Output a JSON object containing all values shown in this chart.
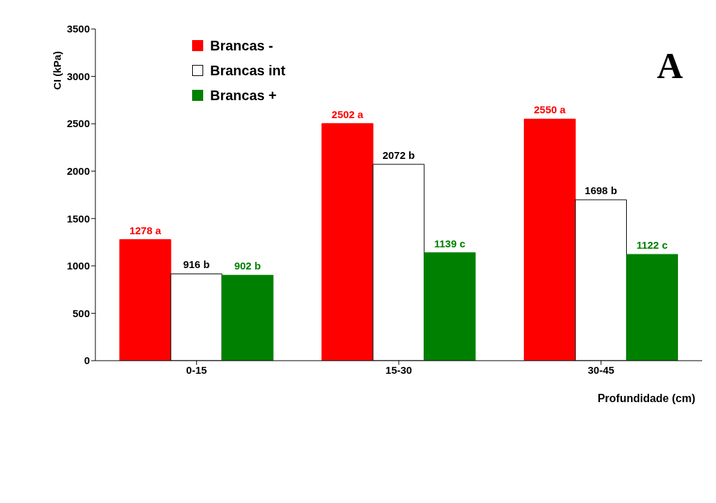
{
  "chart_data": {
    "type": "bar",
    "ylabel": "CI (kPa)",
    "xlabel": "Profundidade (cm)",
    "categories": [
      "0-15",
      "15-30",
      "30-45"
    ],
    "series": [
      {
        "name": "Brancas -",
        "color": "#ff0000",
        "values": [
          1278,
          2502,
          2550
        ],
        "value_labels": [
          "1278 a",
          "2502 a",
          "2550 a"
        ]
      },
      {
        "name": "Brancas int",
        "color": "#ffffff",
        "values": [
          916,
          2072,
          1698
        ],
        "value_labels": [
          "916 b",
          "2072 b",
          "1698 b"
        ]
      },
      {
        "name": "Brancas +",
        "color": "#008000",
        "values": [
          902,
          1139,
          1122
        ],
        "value_labels": [
          "902 b",
          "1139 c",
          "1122 c"
        ]
      }
    ],
    "ylim": [
      0,
      3500
    ],
    "yticks": [
      0,
      500,
      1000,
      1500,
      2000,
      2500,
      3000,
      3500
    ],
    "grid": false,
    "legend": "top left",
    "annotations": [
      "A"
    ]
  }
}
